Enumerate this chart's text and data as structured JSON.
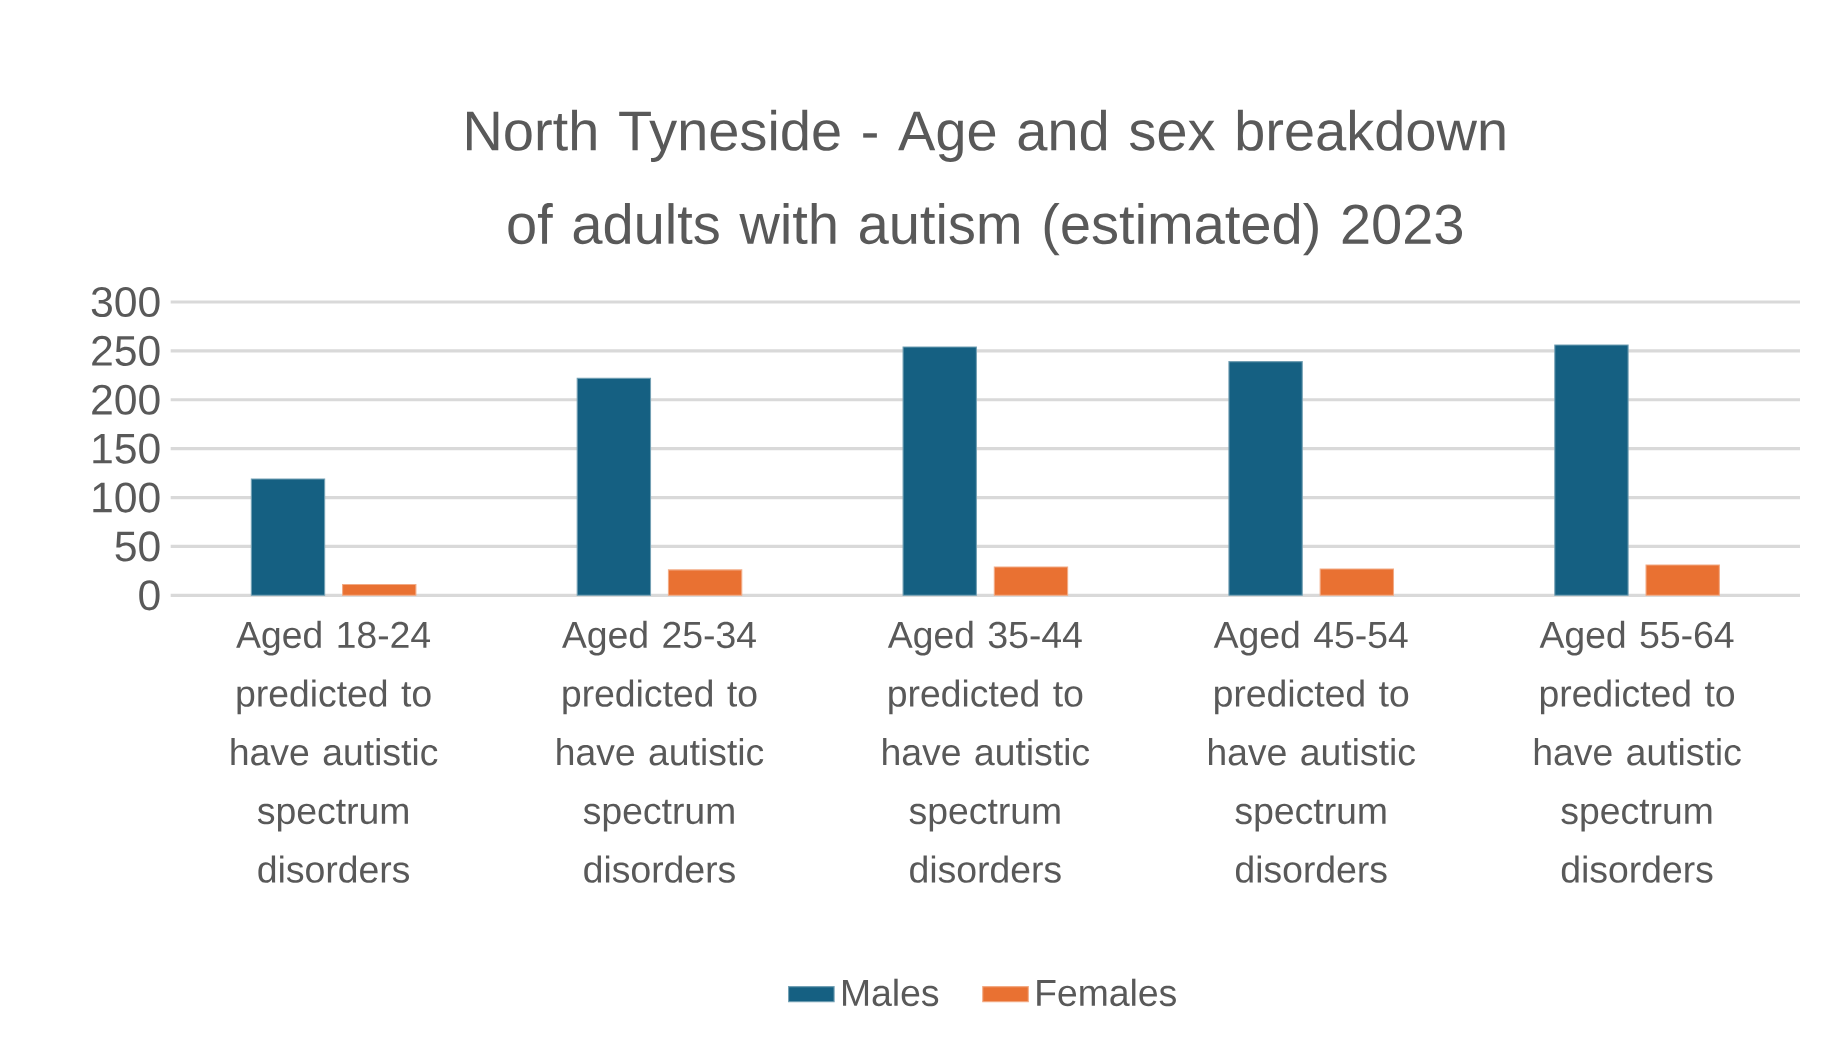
{
  "chart_data": {
    "type": "bar",
    "title": "North Tyneside - Age and sex breakdown of adults with autism (estimated)  2023",
    "categories": [
      "Aged 18-24 predicted to have autistic spectrum disorders",
      "Aged 25-34 predicted to have autistic spectrum disorders",
      "Aged 35-44 predicted to have autistic spectrum disorders",
      "Aged 45-54 predicted to have autistic spectrum disorders",
      "Aged 55-64 predicted to have autistic spectrum disorders"
    ],
    "series": [
      {
        "name": "Males",
        "color": "#156082",
        "values": [
          119,
          222,
          254,
          239,
          256
        ]
      },
      {
        "name": "Females",
        "color": "#e97132",
        "values": [
          11,
          26,
          29,
          27,
          31
        ]
      }
    ],
    "ylim": [
      0,
      300
    ],
    "yticks": [
      0,
      50,
      100,
      150,
      200,
      250,
      300
    ],
    "grid": "y",
    "legend": "bottom"
  }
}
